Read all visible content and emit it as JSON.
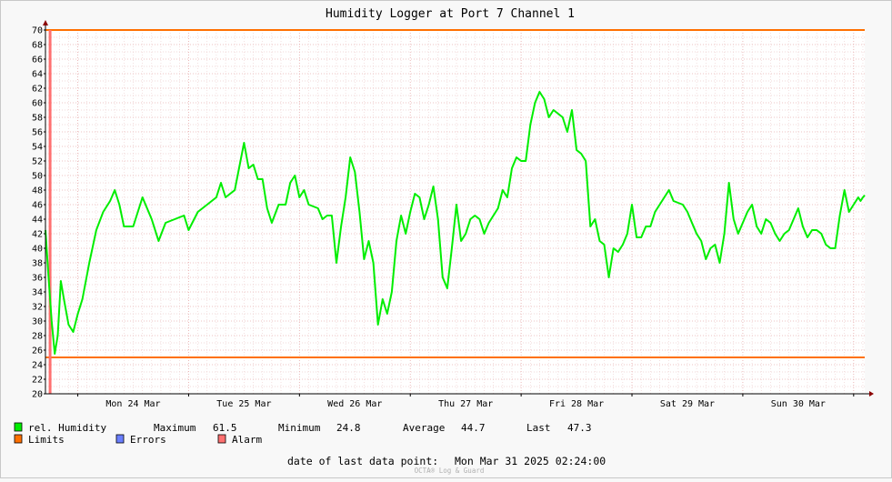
{
  "title": "Humidity Logger at Port 7 Channel 1",
  "colors": {
    "series": "#00ee00",
    "limits": "#ff7000",
    "errors": "#6a7fff",
    "alarm": "#ff7070",
    "grid_major": "#e8b0b0",
    "grid_minor": "#eccccc"
  },
  "chart_data": {
    "type": "line",
    "ylim": [
      20,
      70
    ],
    "y_ticks": [
      "20",
      "22",
      "24",
      "26",
      "28",
      "30",
      "32",
      "34",
      "36",
      "38",
      "40",
      "42",
      "44",
      "46",
      "48",
      "50",
      "52",
      "54",
      "56",
      "58",
      "60",
      "62",
      "64",
      "66",
      "68",
      "70"
    ],
    "x_range": [
      "2025-03-23T17:00",
      "2025-03-31T02:24"
    ],
    "x_tick_labels": [
      {
        "label": "Mon 24 Mar",
        "at": "2025-03-24T12:00"
      },
      {
        "label": "Tue 25 Mar",
        "at": "2025-03-25T12:00"
      },
      {
        "label": "Wed 26 Mar",
        "at": "2025-03-26T12:00"
      },
      {
        "label": "Thu 27 Mar",
        "at": "2025-03-27T12:00"
      },
      {
        "label": "Fri 28 Mar",
        "at": "2025-03-28T12:00"
      },
      {
        "label": "Sat 29 Mar",
        "at": "2025-03-29T12:00"
      },
      {
        "label": "Sun 30 Mar",
        "at": "2025-03-30T12:00"
      }
    ],
    "limits": {
      "upper": 70,
      "lower": 25
    },
    "alarm_at": "2025-03-23T18:00",
    "series": [
      {
        "name": "rel. Humidity",
        "points": [
          [
            "2025-03-23T17:00",
            42.5
          ],
          [
            "2025-03-23T17:40",
            36.0
          ],
          [
            "2025-03-23T18:20",
            30.0
          ],
          [
            "2025-03-23T19:00",
            25.5
          ],
          [
            "2025-03-23T19:40",
            28.0
          ],
          [
            "2025-03-23T20:20",
            35.5
          ],
          [
            "2025-03-23T21:00",
            33.0
          ],
          [
            "2025-03-23T22:00",
            29.5
          ],
          [
            "2025-03-23T23:00",
            28.5
          ],
          [
            "2025-03-24T00:00",
            31.0
          ],
          [
            "2025-03-24T01:00",
            33.0
          ],
          [
            "2025-03-24T02:30",
            38.0
          ],
          [
            "2025-03-24T04:00",
            42.5
          ],
          [
            "2025-03-24T05:30",
            45.0
          ],
          [
            "2025-03-24T07:00",
            46.5
          ],
          [
            "2025-03-24T08:00",
            48.0
          ],
          [
            "2025-03-24T09:00",
            46.0
          ],
          [
            "2025-03-24T10:00",
            43.0
          ],
          [
            "2025-03-24T12:00",
            43.0
          ],
          [
            "2025-03-24T14:00",
            47.0
          ],
          [
            "2025-03-24T16:00",
            44.0
          ],
          [
            "2025-03-24T17:30",
            41.0
          ],
          [
            "2025-03-24T19:00",
            43.5
          ],
          [
            "2025-03-24T21:00",
            44.0
          ],
          [
            "2025-03-24T23:00",
            44.5
          ],
          [
            "2025-03-25T00:00",
            42.5
          ],
          [
            "2025-03-25T02:00",
            45.0
          ],
          [
            "2025-03-25T04:00",
            46.0
          ],
          [
            "2025-03-25T06:00",
            47.0
          ],
          [
            "2025-03-25T07:00",
            49.0
          ],
          [
            "2025-03-25T08:00",
            47.0
          ],
          [
            "2025-03-25T10:00",
            48.0
          ],
          [
            "2025-03-25T12:00",
            54.5
          ],
          [
            "2025-03-25T13:00",
            51.0
          ],
          [
            "2025-03-25T14:00",
            51.5
          ],
          [
            "2025-03-25T15:00",
            49.5
          ],
          [
            "2025-03-25T16:00",
            49.5
          ],
          [
            "2025-03-25T17:00",
            45.5
          ],
          [
            "2025-03-25T18:00",
            43.5
          ],
          [
            "2025-03-25T19:30",
            46.0
          ],
          [
            "2025-03-25T21:00",
            46.0
          ],
          [
            "2025-03-25T22:00",
            49.0
          ],
          [
            "2025-03-25T23:00",
            50.0
          ],
          [
            "2025-03-26T00:00",
            47.0
          ],
          [
            "2025-03-26T01:00",
            48.0
          ],
          [
            "2025-03-26T02:00",
            46.0
          ],
          [
            "2025-03-26T04:00",
            45.5
          ],
          [
            "2025-03-26T05:00",
            44.0
          ],
          [
            "2025-03-26T06:00",
            44.5
          ],
          [
            "2025-03-26T07:00",
            44.5
          ],
          [
            "2025-03-26T08:00",
            38.0
          ],
          [
            "2025-03-26T09:00",
            43.0
          ],
          [
            "2025-03-26T10:00",
            47.0
          ],
          [
            "2025-03-26T11:00",
            52.5
          ],
          [
            "2025-03-26T12:00",
            50.5
          ],
          [
            "2025-03-26T13:00",
            45.0
          ],
          [
            "2025-03-26T14:00",
            38.5
          ],
          [
            "2025-03-26T15:00",
            41.0
          ],
          [
            "2025-03-26T16:00",
            38.0
          ],
          [
            "2025-03-26T17:00",
            29.5
          ],
          [
            "2025-03-26T18:00",
            33.0
          ],
          [
            "2025-03-26T19:00",
            31.0
          ],
          [
            "2025-03-26T20:00",
            34.0
          ],
          [
            "2025-03-26T21:00",
            41.0
          ],
          [
            "2025-03-26T22:00",
            44.5
          ],
          [
            "2025-03-26T23:00",
            42.0
          ],
          [
            "2025-03-27T00:00",
            45.0
          ],
          [
            "2025-03-27T01:00",
            47.5
          ],
          [
            "2025-03-27T02:00",
            47.0
          ],
          [
            "2025-03-27T03:00",
            44.0
          ],
          [
            "2025-03-27T04:00",
            46.0
          ],
          [
            "2025-03-27T05:00",
            48.5
          ],
          [
            "2025-03-27T06:00",
            44.0
          ],
          [
            "2025-03-27T07:00",
            36.0
          ],
          [
            "2025-03-27T08:00",
            34.5
          ],
          [
            "2025-03-27T09:00",
            40.0
          ],
          [
            "2025-03-27T10:00",
            46.0
          ],
          [
            "2025-03-27T11:00",
            41.0
          ],
          [
            "2025-03-27T12:00",
            42.0
          ],
          [
            "2025-03-27T13:00",
            44.0
          ],
          [
            "2025-03-27T14:00",
            44.5
          ],
          [
            "2025-03-27T15:00",
            44.0
          ],
          [
            "2025-03-27T16:00",
            42.0
          ],
          [
            "2025-03-27T17:00",
            43.5
          ],
          [
            "2025-03-27T19:00",
            45.5
          ],
          [
            "2025-03-27T20:00",
            48.0
          ],
          [
            "2025-03-27T21:00",
            47.0
          ],
          [
            "2025-03-27T22:00",
            51.0
          ],
          [
            "2025-03-27T23:00",
            52.5
          ],
          [
            "2025-03-28T00:00",
            52.0
          ],
          [
            "2025-03-28T01:00",
            52.0
          ],
          [
            "2025-03-28T02:00",
            57.0
          ],
          [
            "2025-03-28T03:00",
            60.0
          ],
          [
            "2025-03-28T04:00",
            61.5
          ],
          [
            "2025-03-28T05:00",
            60.5
          ],
          [
            "2025-03-28T06:00",
            58.0
          ],
          [
            "2025-03-28T07:00",
            59.0
          ],
          [
            "2025-03-28T08:00",
            58.5
          ],
          [
            "2025-03-28T09:00",
            58.0
          ],
          [
            "2025-03-28T10:00",
            56.0
          ],
          [
            "2025-03-28T11:00",
            59.0
          ],
          [
            "2025-03-28T12:00",
            53.5
          ],
          [
            "2025-03-28T13:00",
            53.0
          ],
          [
            "2025-03-28T14:00",
            52.0
          ],
          [
            "2025-03-28T15:00",
            43.0
          ],
          [
            "2025-03-28T16:00",
            44.0
          ],
          [
            "2025-03-28T17:00",
            41.0
          ],
          [
            "2025-03-28T18:00",
            40.5
          ],
          [
            "2025-03-28T19:00",
            36.0
          ],
          [
            "2025-03-28T20:00",
            40.0
          ],
          [
            "2025-03-28T21:00",
            39.5
          ],
          [
            "2025-03-28T22:00",
            40.5
          ],
          [
            "2025-03-28T23:00",
            42.0
          ],
          [
            "2025-03-29T00:00",
            46.0
          ],
          [
            "2025-03-29T01:00",
            41.5
          ],
          [
            "2025-03-29T02:00",
            41.5
          ],
          [
            "2025-03-29T03:00",
            43.0
          ],
          [
            "2025-03-29T04:00",
            43.0
          ],
          [
            "2025-03-29T05:00",
            45.0
          ],
          [
            "2025-03-29T07:00",
            47.0
          ],
          [
            "2025-03-29T08:00",
            48.0
          ],
          [
            "2025-03-29T09:00",
            46.5
          ],
          [
            "2025-03-29T11:00",
            46.0
          ],
          [
            "2025-03-29T12:00",
            45.0
          ],
          [
            "2025-03-29T13:00",
            43.5
          ],
          [
            "2025-03-29T14:00",
            42.0
          ],
          [
            "2025-03-29T15:00",
            41.0
          ],
          [
            "2025-03-29T16:00",
            38.5
          ],
          [
            "2025-03-29T17:00",
            40.0
          ],
          [
            "2025-03-29T18:00",
            40.5
          ],
          [
            "2025-03-29T19:00",
            38.0
          ],
          [
            "2025-03-29T20:00",
            42.0
          ],
          [
            "2025-03-29T21:00",
            49.0
          ],
          [
            "2025-03-29T22:00",
            44.0
          ],
          [
            "2025-03-29T23:00",
            42.0
          ],
          [
            "2025-03-30T00:00",
            43.5
          ],
          [
            "2025-03-30T01:00",
            45.0
          ],
          [
            "2025-03-30T02:00",
            46.0
          ],
          [
            "2025-03-30T03:00",
            43.0
          ],
          [
            "2025-03-30T04:00",
            42.0
          ],
          [
            "2025-03-30T05:00",
            44.0
          ],
          [
            "2025-03-30T06:00",
            43.5
          ],
          [
            "2025-03-30T07:00",
            42.0
          ],
          [
            "2025-03-30T08:00",
            41.0
          ],
          [
            "2025-03-30T09:00",
            42.0
          ],
          [
            "2025-03-30T10:00",
            42.5
          ],
          [
            "2025-03-30T11:00",
            44.0
          ],
          [
            "2025-03-30T12:00",
            45.5
          ],
          [
            "2025-03-30T13:00",
            43.0
          ],
          [
            "2025-03-30T14:00",
            41.5
          ],
          [
            "2025-03-30T15:00",
            42.5
          ],
          [
            "2025-03-30T16:00",
            42.5
          ],
          [
            "2025-03-30T17:00",
            42.0
          ],
          [
            "2025-03-30T18:00",
            40.5
          ],
          [
            "2025-03-30T19:00",
            40.0
          ],
          [
            "2025-03-30T20:00",
            40.0
          ],
          [
            "2025-03-30T21:00",
            44.5
          ],
          [
            "2025-03-30T22:00",
            48.0
          ],
          [
            "2025-03-30T23:00",
            45.0
          ],
          [
            "2025-03-31T00:00",
            46.0
          ],
          [
            "2025-03-31T01:00",
            47.0
          ],
          [
            "2025-03-31T01:30",
            46.5
          ],
          [
            "2025-03-31T02:00",
            47.0
          ],
          [
            "2025-03-31T02:24",
            47.3
          ]
        ]
      }
    ]
  },
  "legend": {
    "series": {
      "label": "rel. Humidity",
      "max_label": "Maximum",
      "max_value": "61.5",
      "min_label": "Minimum",
      "min_value": "24.8",
      "avg_label": "Average",
      "avg_value": "44.7",
      "last_label": "Last",
      "last_value": "47.3"
    },
    "limits_label": "Limits",
    "errors_label": "Errors",
    "alarm_label": "Alarm"
  },
  "footer": {
    "last_point_label": "date of last data point:",
    "last_point_value": "Mon Mar 31 2025 02:24:00",
    "watermark": "OCTA® Log & Guard"
  }
}
